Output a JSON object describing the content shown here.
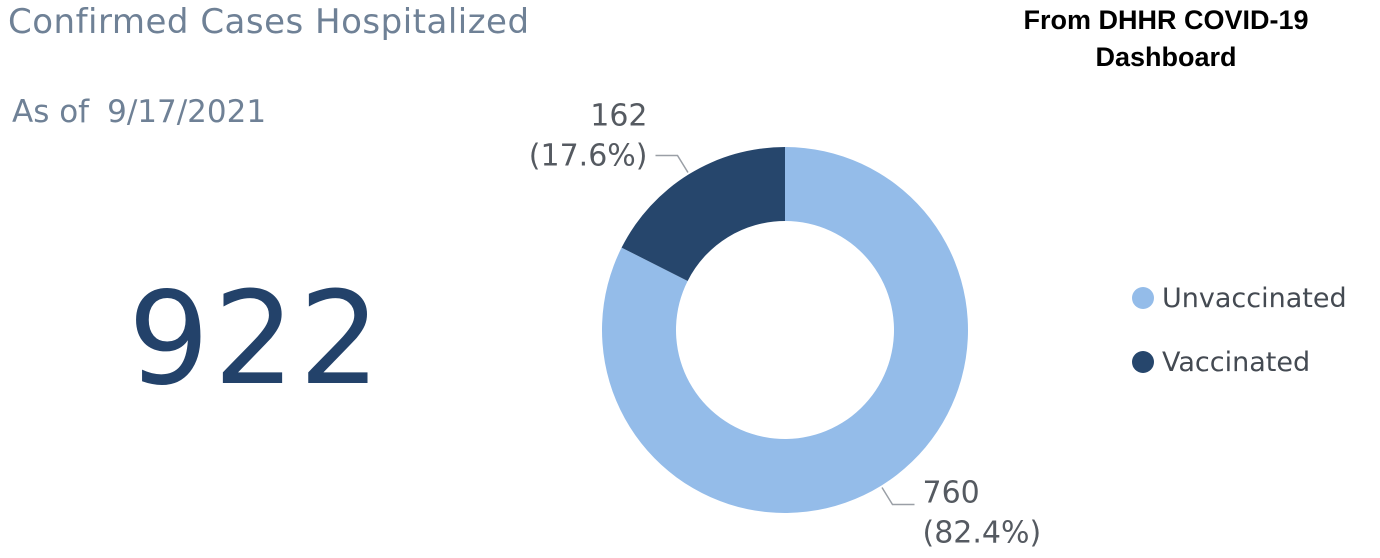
{
  "title": "Confirmed Cases Hospitalized",
  "source_note": "From DHHR COVID-19 Dashboard",
  "as_of_label": "As of",
  "as_of_date": "9/17/2021",
  "total": "922",
  "chart_data": {
    "type": "pie",
    "variant": "donut",
    "title": "",
    "legend_position": "right",
    "slices": [
      {
        "name": "Unvaccinated",
        "value": 760,
        "percent": "82.4%",
        "color": "#94bce9"
      },
      {
        "name": "Vaccinated",
        "value": 162,
        "percent": "17.6%",
        "color": "#26466c"
      }
    ]
  }
}
